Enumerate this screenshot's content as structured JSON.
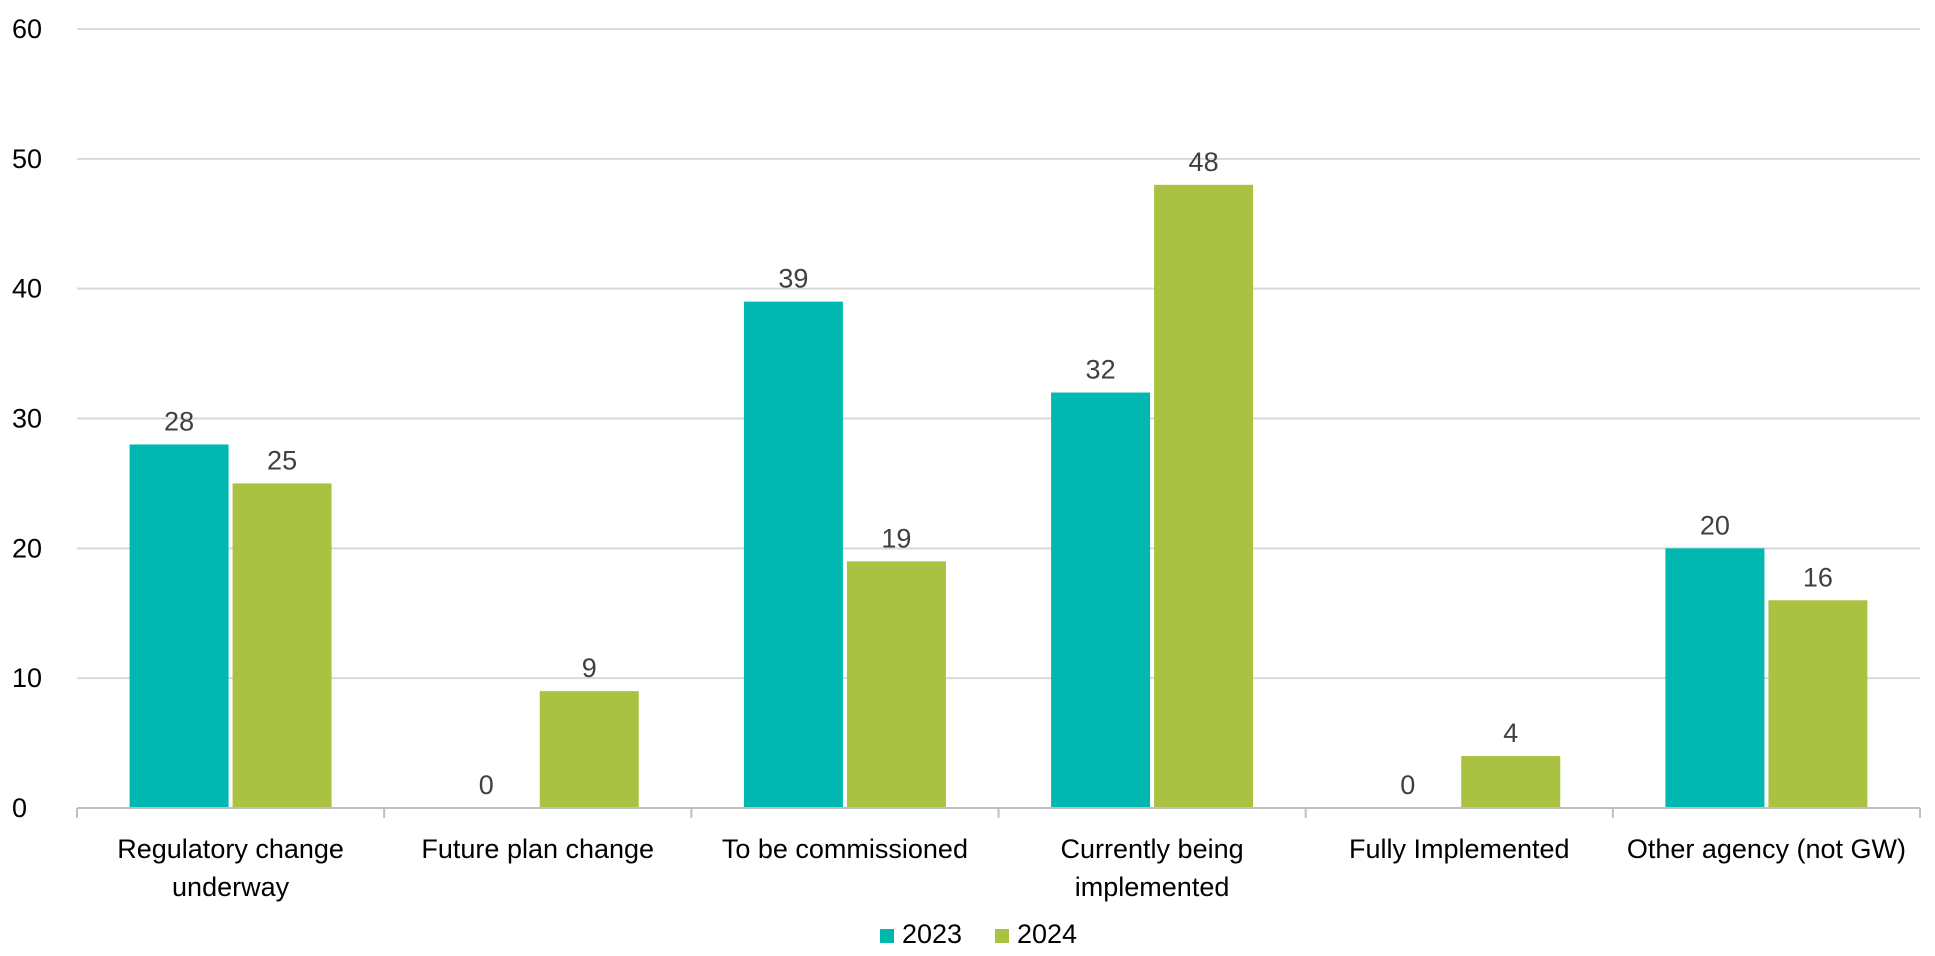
{
  "chart_data": {
    "type": "bar",
    "title": "",
    "xlabel": "",
    "ylabel": "",
    "categories": [
      [
        "Regulatory change",
        "underway"
      ],
      [
        "Future plan change"
      ],
      [
        "To be commissioned"
      ],
      [
        "Currently being",
        "implemented"
      ],
      [
        "Fully Implemented"
      ],
      [
        "Other agency (not GW)"
      ]
    ],
    "series": [
      {
        "name": "2023",
        "color": "#00b8b0",
        "values": [
          28,
          0,
          39,
          32,
          0,
          20
        ]
      },
      {
        "name": "2024",
        "color": "#a9c242",
        "values": [
          25,
          9,
          19,
          48,
          4,
          16
        ]
      }
    ],
    "ylim": [
      0,
      60
    ],
    "yticks": [
      0,
      10,
      20,
      30,
      40,
      50,
      60
    ],
    "grid": true,
    "data_labels": true,
    "legend_position": "bottom-center"
  }
}
